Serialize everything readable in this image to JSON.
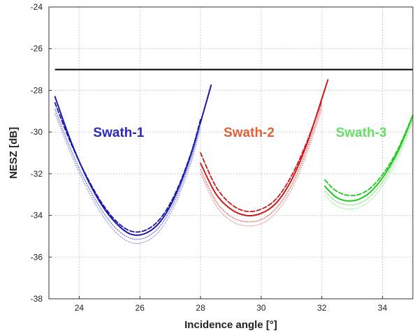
{
  "chart_data": {
    "type": "line",
    "xlabel": "Incidence angle [°]",
    "ylabel": "NESZ [dB]",
    "xlim": [
      23,
      35
    ],
    "ylim": [
      -38,
      -24
    ],
    "xticks": [
      24,
      26,
      28,
      30,
      32,
      34
    ],
    "yticks": [
      -24,
      -26,
      -28,
      -30,
      -32,
      -34,
      -36,
      -38
    ],
    "grid": true,
    "reference_line": {
      "y": -27,
      "x": [
        23.2,
        35
      ],
      "color": "#000000"
    },
    "annotations": [
      {
        "text": "Swath-1",
        "x": 25.3,
        "y": -30.0,
        "color": "#2a2ab8"
      },
      {
        "text": "Swath-2",
        "x": 29.6,
        "y": -30.0,
        "color": "#e0603a"
      },
      {
        "text": "Swath-3",
        "x": 33.3,
        "y": -30.0,
        "color": "#66dd66"
      }
    ],
    "series": [
      {
        "group": "swath-1",
        "style": "solid",
        "color": "#1a1aa8",
        "x": [
          23.2,
          23.7,
          24.2,
          24.7,
          25.2,
          25.7,
          26.2,
          26.7,
          27.2,
          27.7,
          28.35
        ],
        "y": [
          -28.3,
          -30.35,
          -32.05,
          -33.4,
          -34.35,
          -34.9,
          -34.85,
          -34.25,
          -32.95,
          -31.0,
          -27.75
        ]
      },
      {
        "group": "swath-1",
        "style": "dashed",
        "color": "#1a1aa8",
        "x": [
          23.2,
          23.7,
          24.2,
          24.7,
          25.2,
          25.7,
          26.2,
          26.7,
          27.2,
          27.7,
          28.0
        ],
        "y": [
          -28.6,
          -30.45,
          -32.0,
          -33.3,
          -34.25,
          -34.75,
          -34.7,
          -34.1,
          -32.85,
          -30.95,
          -29.4
        ]
      },
      {
        "group": "swath-1",
        "style": "dotted",
        "color": "#6a6ad8",
        "x": [
          23.2,
          23.7,
          24.2,
          24.7,
          25.2,
          25.7,
          26.2,
          26.7,
          27.2,
          27.7,
          28.0
        ],
        "y": [
          -28.9,
          -30.75,
          -32.35,
          -33.65,
          -34.6,
          -35.1,
          -35.05,
          -34.45,
          -33.15,
          -31.2,
          -29.6
        ]
      },
      {
        "group": "swath-1",
        "style": "dotted",
        "color": "#9a9ae6",
        "x": [
          23.2,
          23.7,
          24.2,
          24.7,
          25.2,
          25.7,
          26.2,
          26.7,
          27.2,
          27.7,
          28.0
        ],
        "y": [
          -29.1,
          -30.95,
          -32.55,
          -33.85,
          -34.8,
          -35.3,
          -35.25,
          -34.65,
          -33.35,
          -31.4,
          -29.8
        ]
      },
      {
        "group": "swath-2",
        "style": "solid",
        "color": "#cc1a1a",
        "x": [
          28.0,
          28.5,
          29.0,
          29.5,
          30.0,
          30.5,
          31.0,
          31.5,
          32.0,
          32.2
        ],
        "y": [
          -31.5,
          -32.95,
          -33.7,
          -34.0,
          -33.9,
          -33.4,
          -32.3,
          -30.6,
          -28.4,
          -27.5
        ]
      },
      {
        "group": "swath-2",
        "style": "dashed",
        "color": "#cc1a1a",
        "x": [
          28.0,
          28.5,
          29.0,
          29.5,
          30.0,
          30.5,
          31.0,
          31.5,
          32.0
        ],
        "y": [
          -31.0,
          -32.6,
          -33.45,
          -33.8,
          -33.7,
          -33.2,
          -32.1,
          -30.5,
          -28.5
        ]
      },
      {
        "group": "swath-2",
        "style": "dotted",
        "color": "#e06060",
        "x": [
          28.0,
          28.5,
          29.0,
          29.5,
          30.0,
          30.5,
          31.0,
          31.5,
          32.0
        ],
        "y": [
          -31.8,
          -33.3,
          -34.05,
          -34.3,
          -34.2,
          -33.65,
          -32.55,
          -30.85,
          -28.7
        ]
      },
      {
        "group": "swath-2",
        "style": "dotted",
        "color": "#ec9a9a",
        "x": [
          28.0,
          28.5,
          29.0,
          29.5,
          30.0,
          30.5,
          31.0,
          31.5,
          32.0
        ],
        "y": [
          -32.0,
          -33.5,
          -34.25,
          -34.5,
          -34.4,
          -33.85,
          -32.75,
          -31.05,
          -28.9
        ]
      },
      {
        "group": "swath-3",
        "style": "solid",
        "color": "#1ec81e",
        "x": [
          32.1,
          32.5,
          33.0,
          33.5,
          34.0,
          34.5,
          35.0
        ],
        "y": [
          -32.6,
          -33.15,
          -33.3,
          -33.0,
          -32.2,
          -30.95,
          -29.2
        ]
      },
      {
        "group": "swath-3",
        "style": "dashed",
        "color": "#1ec81e",
        "x": [
          32.1,
          32.5,
          33.0,
          33.5,
          34.0,
          34.5,
          35.0
        ],
        "y": [
          -32.3,
          -32.85,
          -33.05,
          -32.8,
          -32.05,
          -30.85,
          -29.2
        ]
      },
      {
        "group": "swath-3",
        "style": "dotted",
        "color": "#6ade6a",
        "x": [
          32.1,
          32.5,
          33.0,
          33.5,
          34.0,
          34.5,
          35.0
        ],
        "y": [
          -32.85,
          -33.35,
          -33.5,
          -33.2,
          -32.4,
          -31.1,
          -29.35
        ]
      },
      {
        "group": "swath-3",
        "style": "dotted",
        "color": "#a0eca0",
        "x": [
          32.1,
          32.5,
          33.0,
          33.5,
          34.0,
          34.5,
          35.0
        ],
        "y": [
          -33.05,
          -33.55,
          -33.7,
          -33.4,
          -32.6,
          -31.3,
          -29.5
        ]
      }
    ]
  }
}
